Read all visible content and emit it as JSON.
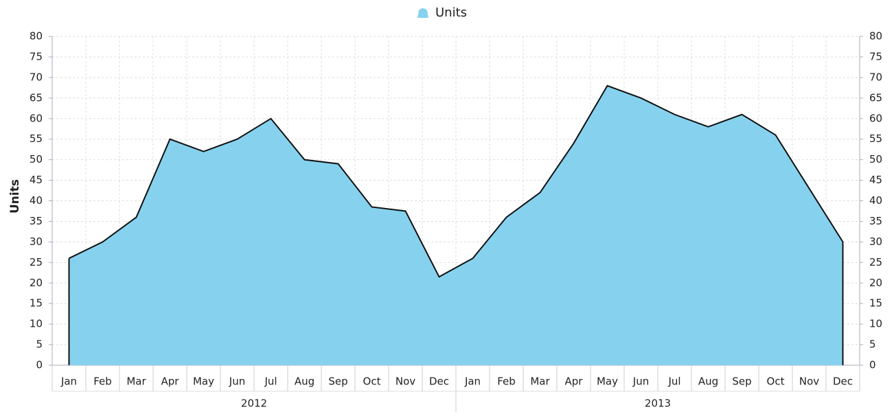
{
  "chart_data": {
    "type": "area",
    "legend": "top",
    "y_label": "Units",
    "categories": [
      "Jan",
      "Feb",
      "Mar",
      "Apr",
      "May",
      "Jun",
      "Jul",
      "Aug",
      "Sep",
      "Oct",
      "Nov",
      "Dec",
      "Jan",
      "Feb",
      "Mar",
      "Apr",
      "May",
      "Jun",
      "Jul",
      "Aug",
      "Sep",
      "Oct",
      "Nov",
      "Dec"
    ],
    "years": [
      "2012",
      "2013"
    ],
    "series": [
      {
        "name": "Units",
        "color": "#86d2ee",
        "values": [
          26,
          30,
          36,
          55,
          52,
          55,
          60,
          50,
          49,
          38.5,
          37.5,
          21.5,
          26,
          36,
          42,
          54,
          68,
          65,
          61,
          58,
          61,
          56,
          43,
          30
        ]
      }
    ],
    "ylim": [
      0,
      80
    ],
    "yticks": [
      0,
      5,
      10,
      15,
      20,
      25,
      30,
      35,
      40,
      45,
      50,
      55,
      60,
      65,
      70,
      75,
      80
    ],
    "y2lim": [
      0,
      80
    ],
    "y2ticks": [
      0,
      5,
      10,
      15,
      20,
      25,
      30,
      35,
      40,
      45,
      50,
      55,
      60,
      65,
      70,
      75,
      80
    ],
    "grid": true
  }
}
